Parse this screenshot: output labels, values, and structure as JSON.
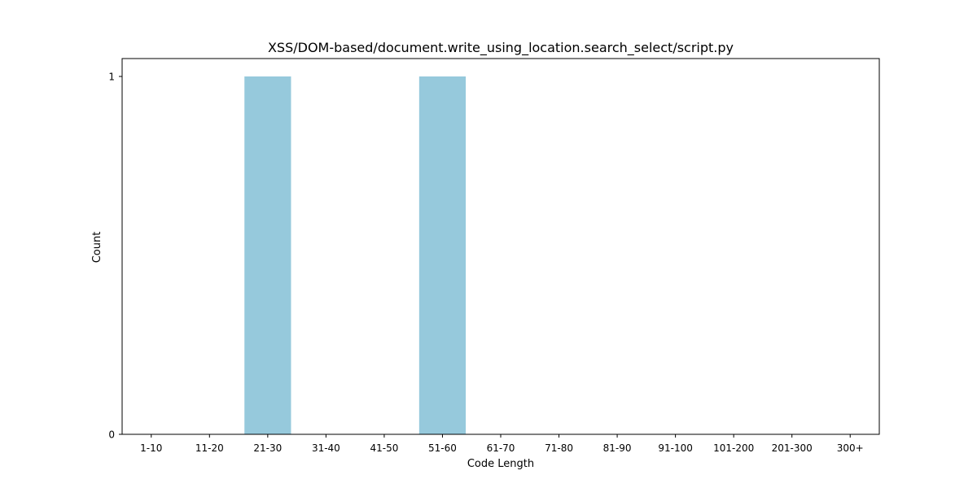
{
  "chart_data": {
    "type": "bar",
    "title": "XSS/DOM-based/document.write_using_location.search_select/script.py",
    "xlabel": "Code Length",
    "ylabel": "Count",
    "categories": [
      "1-10",
      "11-20",
      "21-30",
      "31-40",
      "41-50",
      "51-60",
      "61-70",
      "71-80",
      "81-90",
      "91-100",
      "101-200",
      "201-300",
      "300+"
    ],
    "values": [
      0,
      0,
      1,
      0,
      0,
      1,
      0,
      0,
      0,
      0,
      0,
      0,
      0
    ],
    "yticks": [
      0,
      1
    ],
    "ylim": [
      0,
      1.05
    ],
    "grid": false,
    "bar_color": "#96c9dc"
  }
}
